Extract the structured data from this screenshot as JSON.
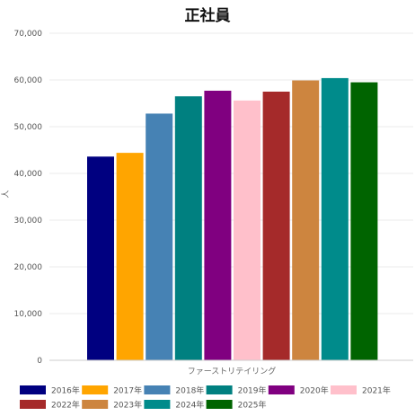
{
  "chart_data": {
    "type": "bar",
    "title": "正社員",
    "xlabel": "ファーストリテイリング",
    "ylabel": "人",
    "ylim": [
      0,
      70000
    ],
    "yticks": [
      0,
      10000,
      20000,
      30000,
      40000,
      50000,
      60000,
      70000
    ],
    "ytick_labels": [
      "0",
      "10,000",
      "20,000",
      "30,000",
      "40,000",
      "50,000",
      "60,000",
      "70,000"
    ],
    "grid": true,
    "legend_position": "bottom",
    "categories": [
      "ファーストリテイリング"
    ],
    "series": [
      {
        "name": "2016年",
        "values": [
          43600
        ],
        "color": "#000080"
      },
      {
        "name": "2017年",
        "values": [
          44400
        ],
        "color": "#FFA500"
      },
      {
        "name": "2018年",
        "values": [
          52800
        ],
        "color": "#4682B4"
      },
      {
        "name": "2019年",
        "values": [
          56500
        ],
        "color": "#008080"
      },
      {
        "name": "2020年",
        "values": [
          57700
        ],
        "color": "#800080"
      },
      {
        "name": "2021年",
        "values": [
          55600
        ],
        "color": "#FFC0CB"
      },
      {
        "name": "2022年",
        "values": [
          57500
        ],
        "color": "#A52A2A"
      },
      {
        "name": "2023年",
        "values": [
          59900
        ],
        "color": "#CD853F"
      },
      {
        "name": "2024年",
        "values": [
          60400
        ],
        "color": "#008B8B"
      },
      {
        "name": "2025年",
        "values": [
          59500
        ],
        "color": "#006400"
      }
    ]
  }
}
